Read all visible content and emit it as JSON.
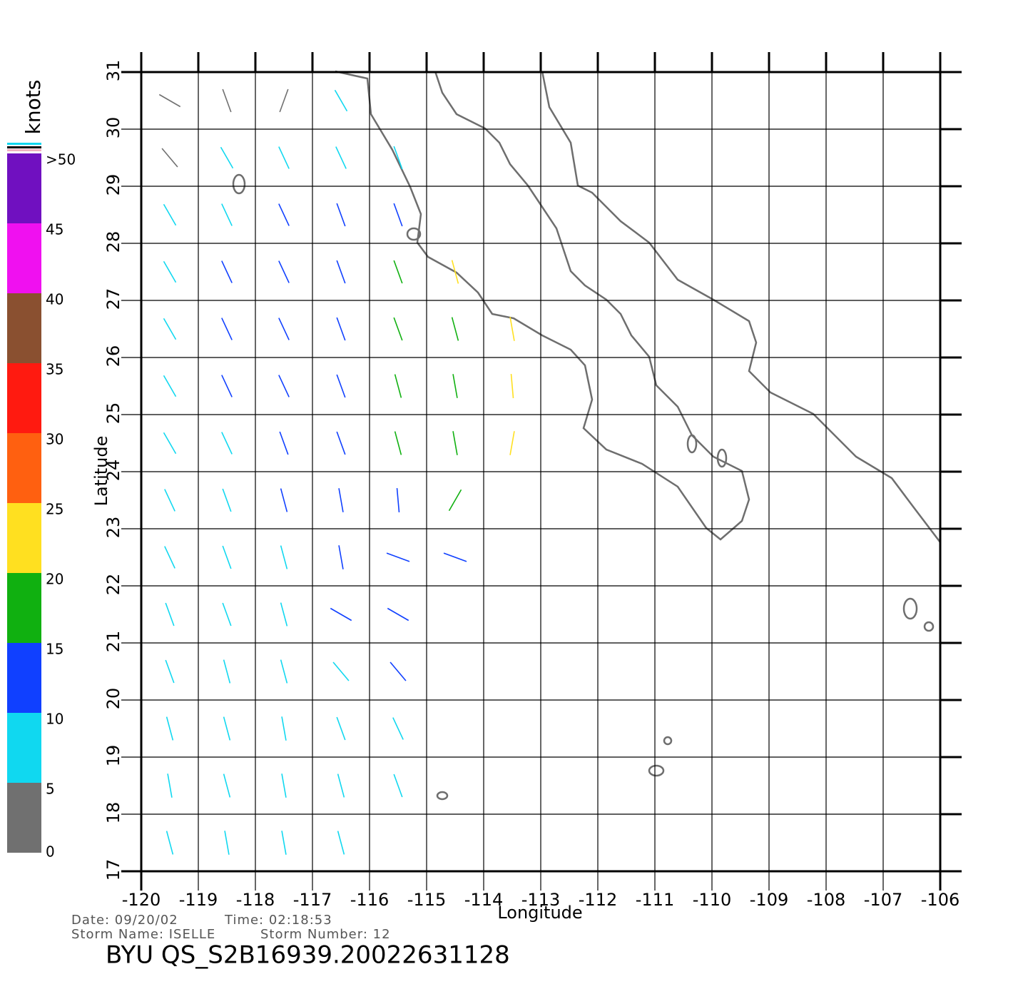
{
  "chart_data": {
    "type": "map",
    "title": "BYU QS_S2B16939.20022631128",
    "date": "Date: 09/20/02",
    "time": "Time: 02:18:53",
    "storm_name": "Storm Name: ISELLE",
    "storm_number": "Storm Number: 12",
    "x_label": "Longitude",
    "y_label": "Latitude",
    "xlim": [
      -120,
      -106
    ],
    "xticks": [
      -120,
      -119,
      -118,
      -117,
      -116,
      -115,
      -114,
      -113,
      -112,
      -111,
      -110,
      -109,
      -108,
      -107,
      -106
    ],
    "ylim": [
      17,
      31
    ],
    "yticks": [
      17,
      18,
      19,
      20,
      21,
      22,
      23,
      24,
      25,
      26,
      27,
      28,
      29,
      30,
      31
    ],
    "grid": true,
    "colorbar_title": "knots",
    "colorbar_lim": [
      0,
      50
    ],
    "colorbar_ticks": [
      0,
      5,
      10,
      15,
      20,
      25,
      30,
      35,
      40,
      45,
      {
        "value": 50,
        "label": ">50"
      }
    ],
    "colorbar_colors": [
      "#707070",
      "#10d8f0",
      "#1040ff",
      "#10b010",
      "#ffe020",
      "#ff6010",
      "#ff1a10",
      "#8a5030",
      "#f010f0",
      "#7010c0"
    ],
    "winds": [
      {
        "lat": 30.5,
        "lon": [
          -119.5,
          -118.5,
          -117.5,
          -116.5
        ],
        "speed": [
          3,
          4,
          4,
          6
        ],
        "direction": [
          300,
          340,
          20,
          330
        ]
      },
      {
        "lat": 29.5,
        "lon": [
          -119.5,
          -118.5,
          -117.5,
          -116.5,
          -115.5
        ],
        "speed": [
          4,
          6,
          7,
          8,
          9
        ],
        "direction": [
          320,
          330,
          335,
          335,
          340
        ]
      },
      {
        "lat": 28.5,
        "lon": [
          -119.5,
          -118.5,
          -117.5,
          -116.5,
          -115.5
        ],
        "speed": [
          7,
          9,
          11,
          12,
          13
        ],
        "direction": [
          330,
          335,
          335,
          340,
          340
        ]
      },
      {
        "lat": 27.5,
        "lon": [
          -119.5,
          -118.5,
          -117.5,
          -116.5,
          -115.5,
          -114.5
        ],
        "speed": [
          8,
          10,
          12,
          13,
          16,
          21
        ],
        "direction": [
          330,
          335,
          335,
          340,
          340,
          345
        ]
      },
      {
        "lat": 26.5,
        "lon": [
          -119.5,
          -118.5,
          -117.5,
          -116.5,
          -115.5,
          -114.5,
          -113.5
        ],
        "speed": [
          8,
          10,
          12,
          13,
          17,
          19,
          22
        ],
        "direction": [
          330,
          335,
          335,
          340,
          340,
          345,
          350
        ]
      },
      {
        "lat": 25.5,
        "lon": [
          -119.5,
          -118.5,
          -117.5,
          -116.5,
          -115.5,
          -114.5,
          -113.5
        ],
        "speed": [
          8,
          10,
          12,
          14,
          17,
          19,
          21
        ],
        "direction": [
          330,
          335,
          335,
          340,
          345,
          350,
          355
        ]
      },
      {
        "lat": 24.5,
        "lon": [
          -119.5,
          -118.5,
          -117.5,
          -116.5,
          -115.5,
          -114.5,
          -113.5
        ],
        "speed": [
          7,
          9,
          11,
          13,
          16,
          18,
          21
        ],
        "direction": [
          330,
          335,
          340,
          340,
          345,
          350,
          10
        ]
      },
      {
        "lat": 23.5,
        "lon": [
          -119.5,
          -118.5,
          -117.5,
          -116.5,
          -115.5,
          -114.5
        ],
        "speed": [
          6,
          8,
          10,
          12,
          14,
          18
        ],
        "direction": [
          335,
          340,
          345,
          350,
          355,
          30
        ]
      },
      {
        "lat": 22.5,
        "lon": [
          -119.5,
          -118.5,
          -117.5,
          -116.5,
          -115.5,
          -114.5
        ],
        "speed": [
          6,
          7,
          9,
          11,
          13,
          14
        ],
        "direction": [
          335,
          340,
          345,
          350,
          290,
          290
        ]
      },
      {
        "lat": 21.5,
        "lon": [
          -119.5,
          -118.5,
          -117.5,
          -116.5,
          -115.5
        ],
        "speed": [
          6,
          7,
          8,
          10,
          12
        ],
        "direction": [
          340,
          340,
          345,
          300,
          300
        ]
      },
      {
        "lat": 20.5,
        "lon": [
          -119.5,
          -118.5,
          -117.5,
          -116.5,
          -115.5
        ],
        "speed": [
          6,
          7,
          8,
          9,
          10
        ],
        "direction": [
          340,
          345,
          345,
          320,
          320
        ]
      },
      {
        "lat": 19.5,
        "lon": [
          -119.5,
          -118.5,
          -117.5,
          -116.5,
          -115.5
        ],
        "speed": [
          6,
          7,
          7,
          8,
          9
        ],
        "direction": [
          345,
          345,
          350,
          340,
          335
        ]
      },
      {
        "lat": 18.5,
        "lon": [
          -119.5,
          -118.5,
          -117.5,
          -116.5,
          -115.5
        ],
        "speed": [
          5,
          6,
          7,
          7,
          8
        ],
        "direction": [
          350,
          345,
          350,
          345,
          340
        ]
      },
      {
        "lat": 17.5,
        "lon": [
          -119.5,
          -118.5,
          -117.5,
          -116.5
        ],
        "speed": [
          5,
          6,
          6,
          7
        ],
        "direction": [
          345,
          350,
          350,
          345
        ]
      }
    ]
  }
}
